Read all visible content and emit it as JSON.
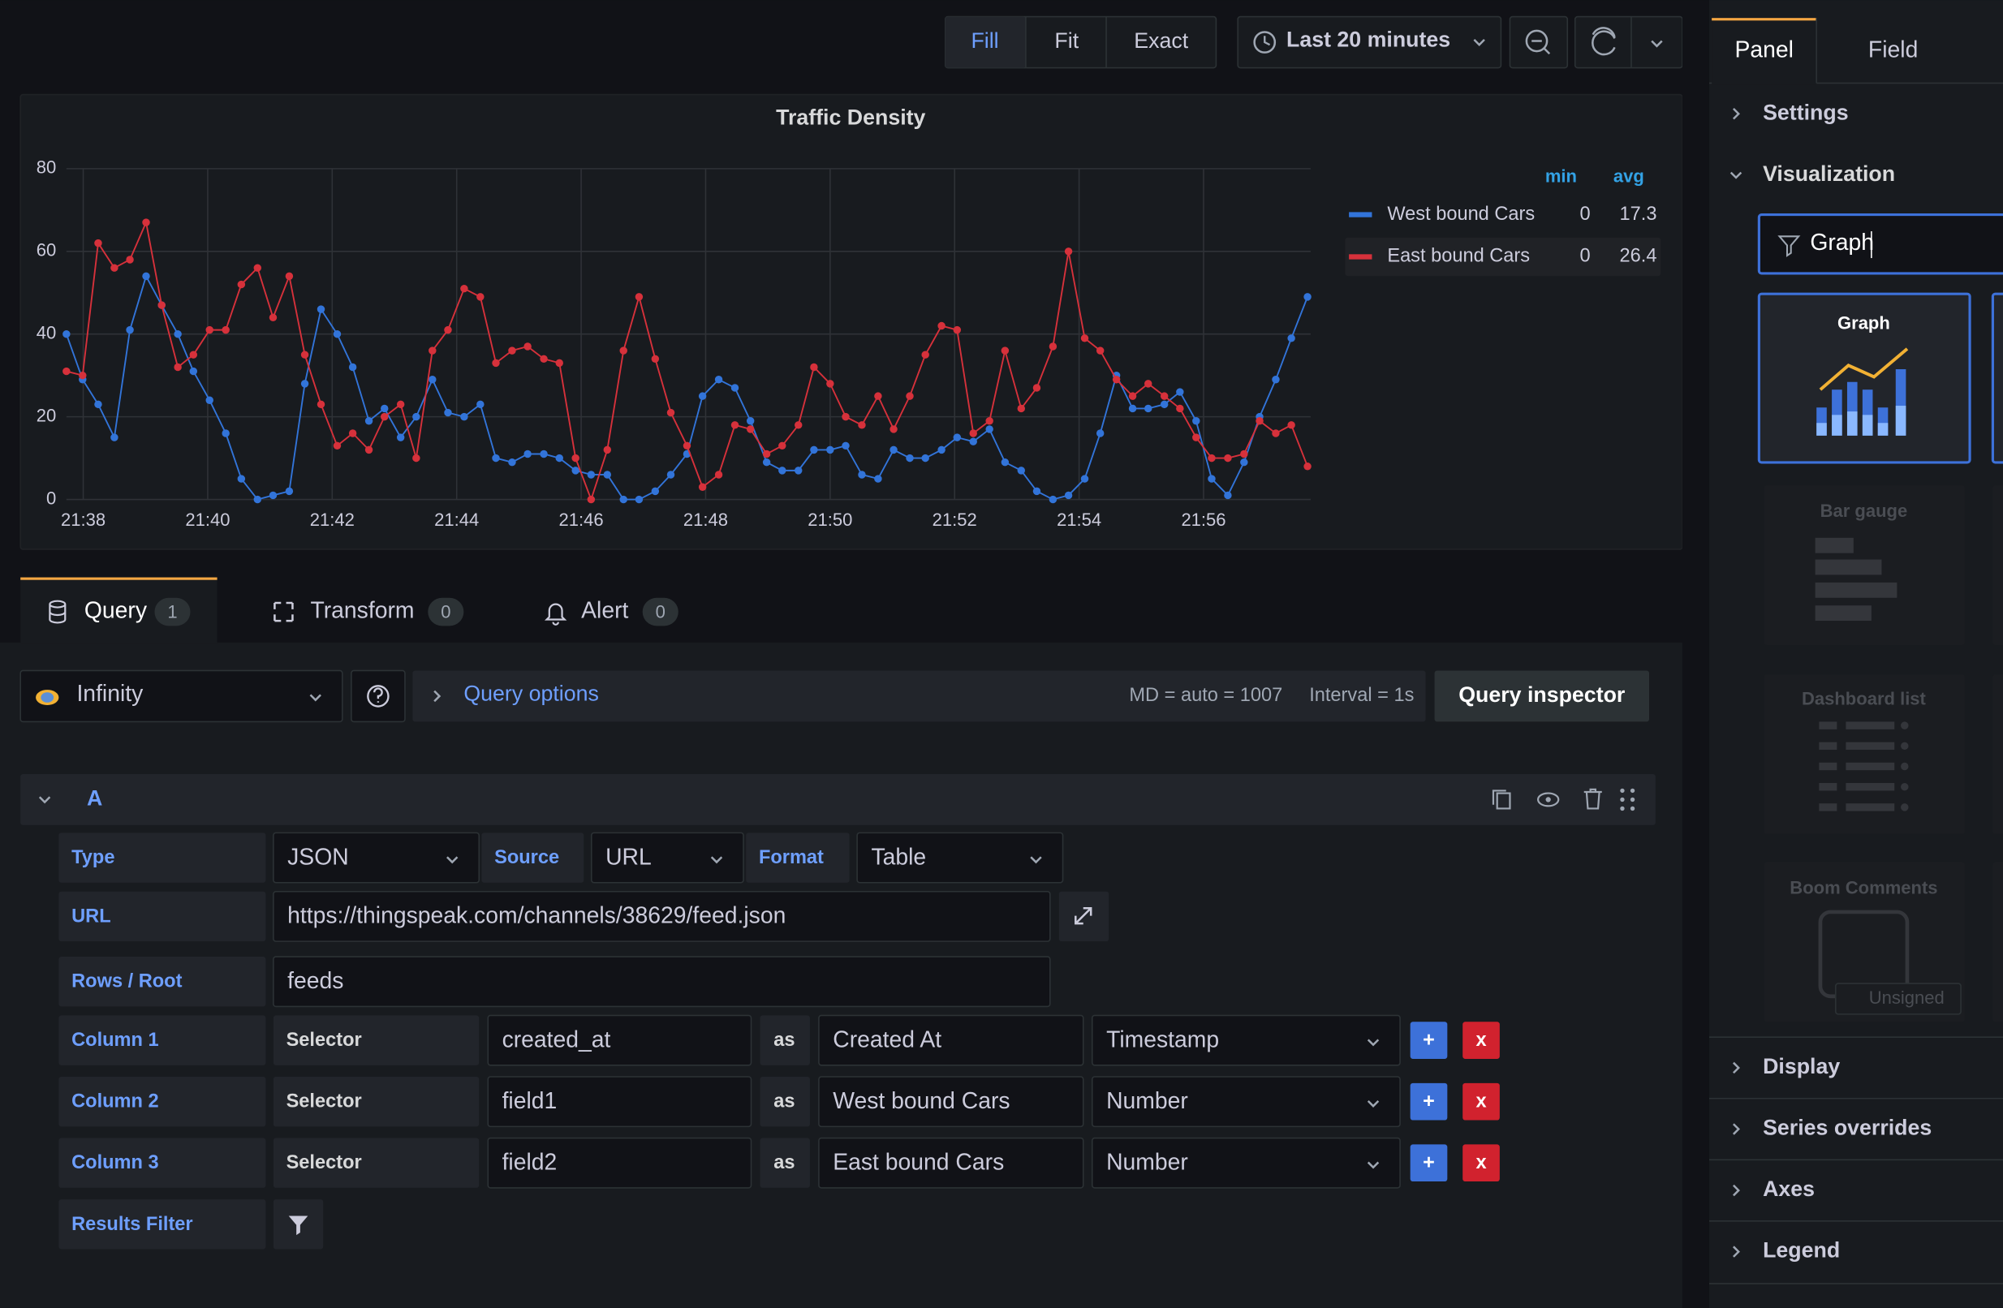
{
  "toolbar": {
    "modes": [
      "Fill",
      "Fit",
      "Exact"
    ],
    "time_range": "Last 20 minutes"
  },
  "chart_data": {
    "type": "line",
    "title": "Traffic Density",
    "x": [
      1297.73,
      1297.99,
      1298.24,
      1298.5,
      1298.75,
      1299.01,
      1299.26,
      1299.52,
      1299.77,
      1300.03,
      1300.29,
      1300.54,
      1300.8,
      1301.05,
      1301.31,
      1301.56,
      1301.82,
      1302.08,
      1302.33,
      1302.59,
      1302.84,
      1303.1,
      1303.35,
      1303.61,
      1303.86,
      1304.12,
      1304.38,
      1304.63,
      1304.89,
      1305.14,
      1305.4,
      1305.65,
      1305.91,
      1306.16,
      1306.42,
      1306.68,
      1306.93,
      1307.19,
      1307.44,
      1307.7,
      1307.95,
      1308.21,
      1308.47,
      1308.72,
      1308.98,
      1309.23,
      1309.49,
      1309.74,
      1310.0,
      1310.25,
      1310.51,
      1310.77,
      1311.02,
      1311.28,
      1311.53,
      1311.79,
      1312.04,
      1312.3,
      1312.56,
      1312.81,
      1313.07,
      1313.32,
      1313.58,
      1313.83,
      1314.09,
      1314.34,
      1314.6,
      1314.86,
      1315.11,
      1315.37,
      1315.62,
      1315.88,
      1316.13,
      1316.39,
      1316.65,
      1316.9,
      1317.16,
      1317.41,
      1317.67
    ],
    "series": [
      {
        "name": "West bound Cars",
        "color": "#3274d9",
        "min": 0,
        "avg": 17.3,
        "values": [
          40,
          29,
          23,
          15,
          41,
          54,
          47,
          40,
          31,
          24,
          16,
          5,
          0,
          1,
          2,
          28,
          46,
          40,
          32,
          19,
          22,
          15,
          20,
          29,
          21,
          20,
          23,
          10,
          9,
          11,
          11,
          10,
          7,
          6,
          6,
          0,
          0,
          2,
          6,
          11,
          25,
          29,
          27,
          19,
          9,
          7,
          7,
          12,
          12,
          13,
          6,
          5,
          12,
          10,
          10,
          12,
          15,
          14,
          17,
          9,
          7,
          2,
          0,
          1,
          5,
          16,
          30,
          22,
          22,
          23,
          26,
          19,
          5,
          1,
          9,
          20,
          29,
          39,
          49
        ]
      },
      {
        "name": "East bound Cars",
        "color": "#d6313b",
        "min": 0,
        "avg": 26.4,
        "values": [
          31,
          30,
          62,
          56,
          58,
          67,
          47,
          32,
          35,
          41,
          41,
          52,
          56,
          44,
          54,
          35,
          23,
          13,
          16,
          12,
          20,
          23,
          10,
          36,
          41,
          51,
          49,
          33,
          36,
          37,
          34,
          33,
          10,
          0,
          12,
          36,
          49,
          34,
          21,
          13,
          3,
          6,
          18,
          17,
          11,
          13,
          18,
          32,
          28,
          20,
          18,
          25,
          17,
          25,
          35,
          42,
          41,
          16,
          19,
          36,
          22,
          27,
          37,
          60,
          39,
          36,
          29,
          25,
          28,
          25,
          22,
          15,
          10,
          10,
          11,
          19,
          16,
          18,
          8
        ]
      }
    ],
    "legend_columns": [
      "min",
      "avg"
    ],
    "xlim": [
      1297.73,
      1317.72
    ],
    "xticks": [
      {
        "value": 1298,
        "label": "21:38"
      },
      {
        "value": 1300,
        "label": "21:40"
      },
      {
        "value": 1302,
        "label": "21:42"
      },
      {
        "value": 1304,
        "label": "21:44"
      },
      {
        "value": 1306,
        "label": "21:46"
      },
      {
        "value": 1308,
        "label": "21:48"
      },
      {
        "value": 1310,
        "label": "21:50"
      },
      {
        "value": 1312,
        "label": "21:52"
      },
      {
        "value": 1314,
        "label": "21:54"
      },
      {
        "value": 1316,
        "label": "21:56"
      }
    ],
    "ylim": [
      0,
      80
    ],
    "yticks": [
      0,
      20,
      40,
      60,
      80
    ],
    "grid": true,
    "legend": "right"
  },
  "query_tabs": [
    {
      "label": "Query",
      "count": 1
    },
    {
      "label": "Transform",
      "count": 0
    },
    {
      "label": "Alert",
      "count": 0
    }
  ],
  "query_bar": {
    "datasource": "Infinity",
    "options_label": "Query options",
    "max_data_points": "MD = auto = 1007",
    "interval": "Interval = 1s",
    "inspector": "Query inspector"
  },
  "query": {
    "ref_id": "A",
    "type_label": "Type",
    "type": "JSON",
    "source_label": "Source",
    "source": "URL",
    "format_label": "Format",
    "format": "Table",
    "url_label": "URL",
    "url": "https://thingspeak.com/channels/38629/feed.json",
    "root_label": "Rows / Root",
    "root": "feeds",
    "columns": [
      {
        "label": "Column 1",
        "selector_label": "Selector",
        "selector": "created_at",
        "as": "as",
        "alias": "Created At",
        "format": "Timestamp"
      },
      {
        "label": "Column 2",
        "selector_label": "Selector",
        "selector": "field1",
        "as": "as",
        "alias": "West bound Cars",
        "format": "Number"
      },
      {
        "label": "Column 3",
        "selector_label": "Selector",
        "selector": "field2",
        "as": "as",
        "alias": "East bound Cars",
        "format": "Number"
      }
    ],
    "column_buttons": {
      "add": "+",
      "remove": "x"
    },
    "filter_label": "Results Filter"
  },
  "side_panel": {
    "tabs": [
      "Panel",
      "Field"
    ],
    "sections_top": [
      "Settings",
      "Visualization"
    ],
    "search": "Graph",
    "visualizations": [
      {
        "name": "Graph"
      },
      {
        "name": "Bar gauge"
      },
      {
        "name": "Dashboard list"
      },
      {
        "name": "Boom Comments",
        "badge": "Unsigned"
      }
    ],
    "sections_bottom": [
      "Display",
      "Series overrides",
      "Axes",
      "Legend"
    ]
  }
}
